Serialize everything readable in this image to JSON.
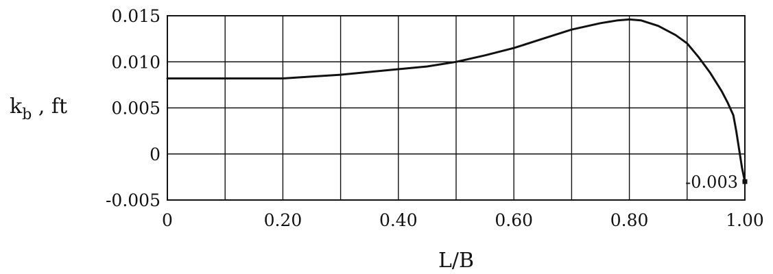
{
  "chart_data": {
    "type": "line",
    "title": "",
    "xlabel": "L/B",
    "ylabel": {
      "main": "k",
      "subscript": "b",
      "suffix": " , ft"
    },
    "xlim": [
      0,
      1.0
    ],
    "ylim": [
      -0.005,
      0.015
    ],
    "grid": true,
    "x_ticks": [
      {
        "value": 0,
        "label": "0"
      },
      {
        "value": 0.2,
        "label": "0.20"
      },
      {
        "value": 0.4,
        "label": "0.40"
      },
      {
        "value": 0.6,
        "label": "0.60"
      },
      {
        "value": 0.8,
        "label": "0.80"
      },
      {
        "value": 1.0,
        "label": "1.00"
      }
    ],
    "x_grid": [
      0.1,
      0.2,
      0.3,
      0.4,
      0.5,
      0.6,
      0.7,
      0.8,
      0.9
    ],
    "y_ticks": [
      {
        "value": 0.015,
        "label": "0.015"
      },
      {
        "value": 0.01,
        "label": "0.010"
      },
      {
        "value": 0.005,
        "label": "0.005"
      },
      {
        "value": 0,
        "label": "0"
      },
      {
        "value": -0.005,
        "label": "-0.005"
      }
    ],
    "series": [
      {
        "x": [
          0,
          0.1,
          0.2,
          0.25,
          0.3,
          0.35,
          0.4,
          0.45,
          0.5,
          0.55,
          0.6,
          0.65,
          0.7,
          0.75,
          0.78,
          0.8,
          0.82,
          0.85,
          0.88,
          0.9,
          0.92,
          0.94,
          0.96,
          0.97,
          0.98,
          0.985,
          0.99,
          0.995,
          1.0
        ],
        "y": [
          0.0082,
          0.0082,
          0.0082,
          0.0084,
          0.0086,
          0.0089,
          0.0092,
          0.0095,
          0.01,
          0.0107,
          0.0115,
          0.0125,
          0.0135,
          0.0142,
          0.0145,
          0.0146,
          0.0145,
          0.0139,
          0.0129,
          0.012,
          0.0105,
          0.0088,
          0.0068,
          0.0056,
          0.0042,
          0.0025,
          0.0005,
          -0.0015,
          -0.003
        ]
      }
    ],
    "annotations": [
      {
        "x": 1.0,
        "y": -0.003,
        "text": "-0.003"
      }
    ]
  }
}
